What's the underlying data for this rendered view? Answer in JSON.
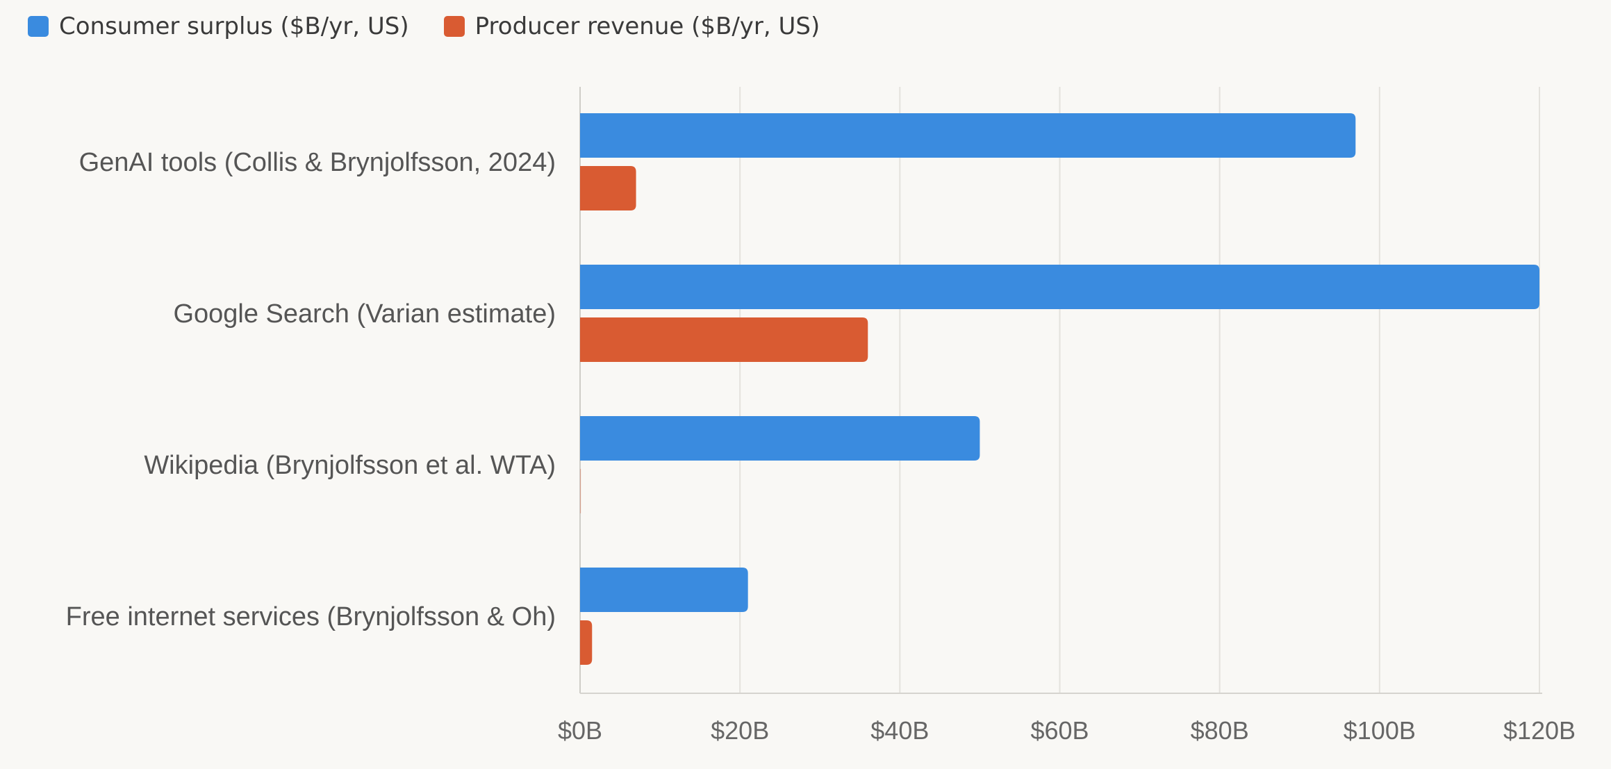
{
  "chart_data": {
    "type": "bar",
    "orientation": "horizontal",
    "title": "",
    "xlabel": "",
    "ylabel": "",
    "categories": [
      "GenAI tools (Collis & Brynjolfsson, 2024)",
      "Google Search (Varian estimate)",
      "Wikipedia (Brynjolfsson et al. WTA)",
      "Free internet services (Brynjolfsson & Oh)"
    ],
    "series": [
      {
        "name": "Consumer surplus ($B/yr, US)",
        "color": "#3a8bdf",
        "values": [
          97,
          120,
          50,
          21
        ]
      },
      {
        "name": "Producer revenue ($B/yr, US)",
        "color": "#d95b32",
        "values": [
          7,
          36,
          0.1,
          1.5
        ]
      }
    ],
    "xlim": [
      0,
      120
    ],
    "xticks": [
      0,
      20,
      40,
      60,
      80,
      100,
      120
    ],
    "xtick_labels": [
      "$0B",
      "$20B",
      "$40B",
      "$60B",
      "$80B",
      "$100B",
      "$120B"
    ],
    "grid": true,
    "legend_position": "top-left"
  }
}
